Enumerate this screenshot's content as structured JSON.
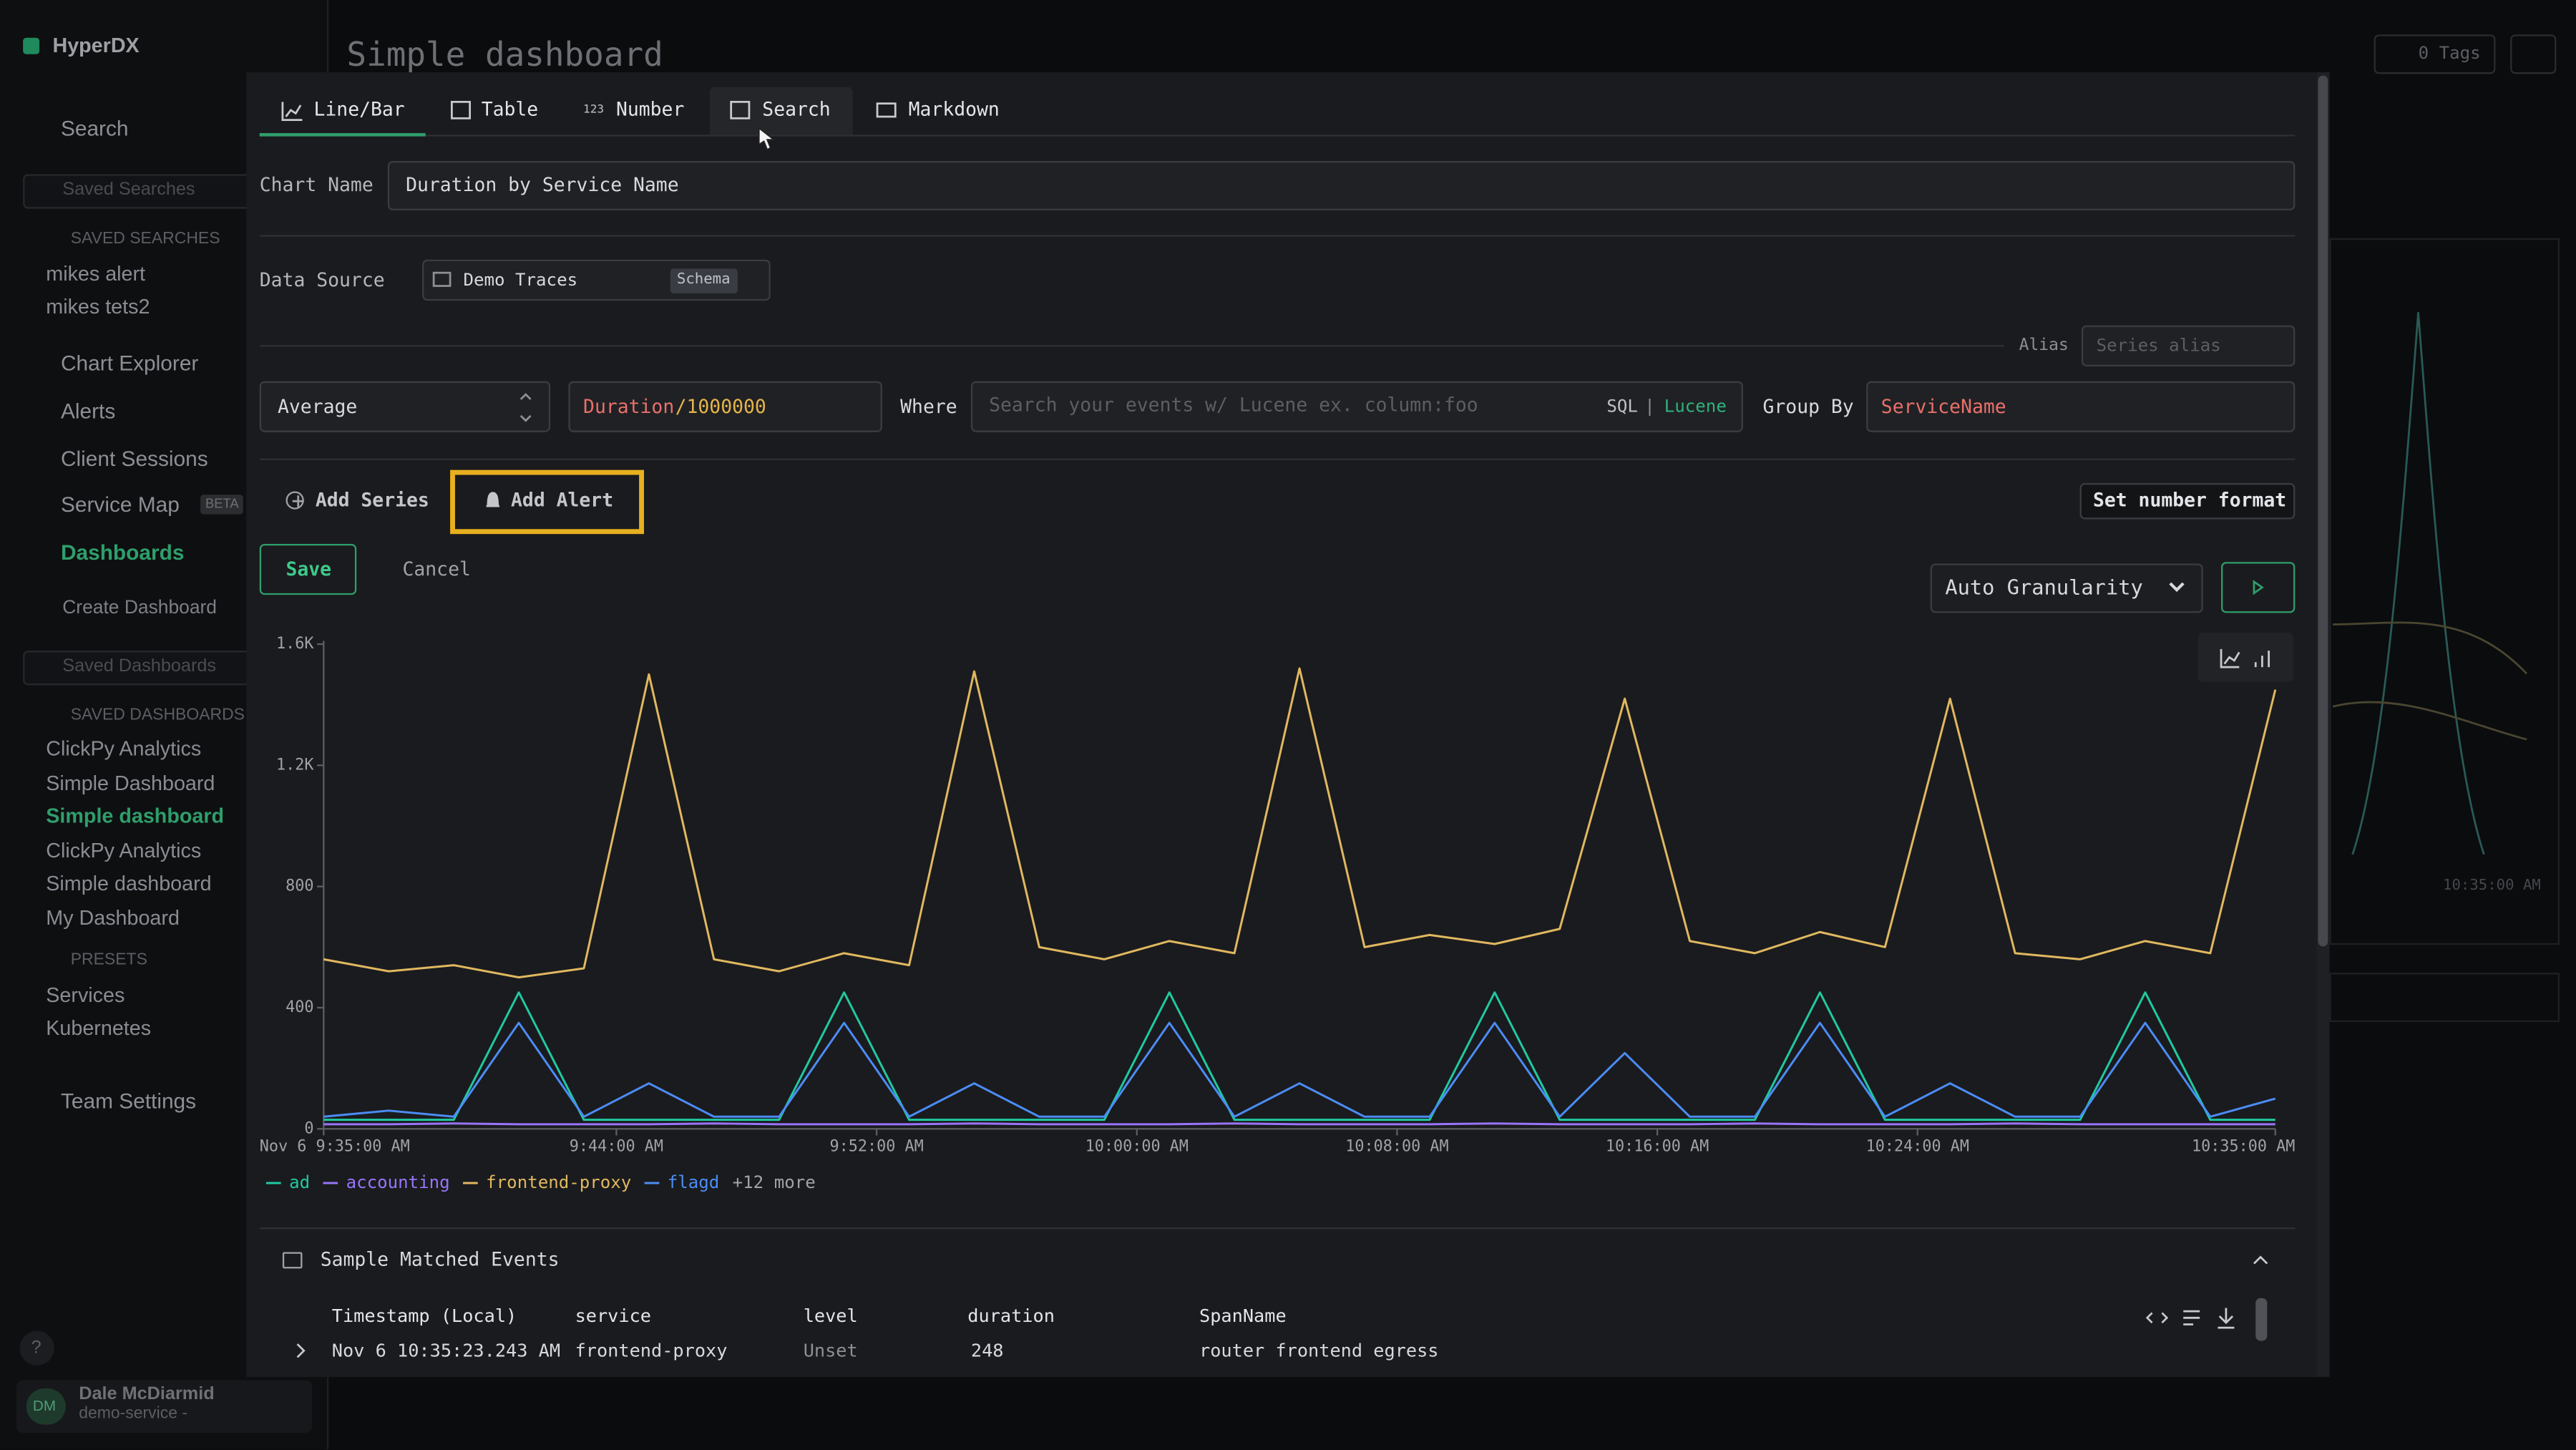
{
  "sidebar": {
    "brand": "HyperDX",
    "nav_search": "Search",
    "saved_searches_placeholder": "Saved Searches",
    "saved_searches_heading": "SAVED SEARCHES",
    "saved_searches": [
      "mikes alert",
      "mikes tets2"
    ],
    "nav": [
      "Chart Explorer",
      "Alerts",
      "Client Sessions",
      "Service Map"
    ],
    "beta": "BETA",
    "dashboards": "Dashboards",
    "create_dashboard": "Create Dashboard",
    "saved_dashboards_placeholder": "Saved Dashboards",
    "saved_dashboards_heading": "SAVED DASHBOARDS",
    "saved_dashboards": [
      "ClickPy Analytics",
      "Simple Dashboard",
      "Simple dashboard",
      "ClickPy Analytics",
      "Simple dashboard",
      "My Dashboard"
    ],
    "presets_heading": "PRESETS",
    "presets": [
      "Services",
      "Kubernetes"
    ],
    "team_settings": "Team Settings",
    "help": "?",
    "user": {
      "initials": "DM",
      "name": "Dale McDiarmid",
      "team": "demo-service -"
    }
  },
  "header": {
    "title": "Simple dashboard",
    "tags": "0 Tags"
  },
  "background_panel": {
    "x_label": "10:35:00 AM"
  },
  "editor": {
    "tabs": [
      "Line/Bar",
      "Table",
      "Number",
      "Search",
      "Markdown"
    ],
    "number_icon": "123",
    "chart_name_label": "Chart Name",
    "chart_name": "Duration by Service Name",
    "data_source_label": "Data Source",
    "data_source": "Demo Traces",
    "schema": "Schema",
    "alias_label": "Alias",
    "alias_placeholder": "Series alias",
    "aggregation": "Average",
    "expression_field": "Duration",
    "expression_divisor": "/1000000",
    "where_label": "Where",
    "where_placeholder": "Search your events w/ Lucene ex. column:foo",
    "sql": "SQL",
    "separator": "|",
    "lucene": "Lucene",
    "group_by_label": "Group By",
    "group_by": "ServiceName",
    "add_series": "Add Series",
    "add_alert": "Add Alert",
    "set_number_format": "Set number format",
    "save": "Save",
    "cancel": "Cancel",
    "granularity": "Auto Granularity",
    "legend_more": "+12 more"
  },
  "chart_data": {
    "type": "line",
    "x": [
      "9:35",
      "9:37",
      "9:39",
      "9:41",
      "9:43",
      "9:45",
      "9:47",
      "9:49",
      "9:51",
      "9:53",
      "9:55",
      "9:57",
      "9:59",
      "10:01",
      "10:03",
      "10:05",
      "10:07",
      "10:09",
      "10:11",
      "10:13",
      "10:15",
      "10:17",
      "10:19",
      "10:21",
      "10:23",
      "10:25",
      "10:27",
      "10:29",
      "10:31",
      "10:33",
      "10:35"
    ],
    "xlim": [
      "9:35",
      "10:35"
    ],
    "xticks": [
      {
        "value": "9:35",
        "label": "Nov 6 9:35:00 AM"
      },
      {
        "value": "9:44",
        "label": "9:44:00 AM"
      },
      {
        "value": "9:52",
        "label": "9:52:00 AM"
      },
      {
        "value": "10:00",
        "label": "10:00:00 AM"
      },
      {
        "value": "10:08",
        "label": "10:08:00 AM"
      },
      {
        "value": "10:16",
        "label": "10:16:00 AM"
      },
      {
        "value": "10:24",
        "label": "10:24:00 AM"
      },
      {
        "value": "10:35",
        "label": "10:35:00 AM"
      }
    ],
    "ylim": [
      0,
      1600
    ],
    "yticks": [
      0,
      400,
      800,
      {
        "value": 1200,
        "label": "1.2K"
      },
      {
        "value": 1600,
        "label": "1.6K"
      }
    ],
    "series": [
      {
        "name": "ad",
        "color": "#20c9a0",
        "values": [
          30,
          30,
          30,
          450,
          30,
          30,
          30,
          30,
          450,
          30,
          30,
          30,
          30,
          450,
          30,
          30,
          30,
          30,
          450,
          30,
          30,
          30,
          30,
          450,
          30,
          30,
          30,
          30,
          450,
          30,
          30
        ]
      },
      {
        "name": "accounting",
        "color": "#9775fa",
        "values": [
          15,
          15,
          18,
          15,
          15,
          15,
          18,
          15,
          15,
          15,
          18,
          15,
          15,
          15,
          18,
          15,
          15,
          15,
          18,
          15,
          15,
          15,
          18,
          15,
          15,
          15,
          18,
          15,
          15,
          15,
          15
        ]
      },
      {
        "name": "frontend-proxy",
        "color": "#e0b860",
        "values": [
          560,
          520,
          540,
          500,
          530,
          1500,
          560,
          520,
          580,
          540,
          1510,
          600,
          560,
          620,
          580,
          1520,
          600,
          640,
          610,
          660,
          1420,
          620,
          580,
          650,
          600,
          1420,
          580,
          560,
          620,
          580,
          1450
        ]
      },
      {
        "name": "flagd",
        "color": "#4c8cf5",
        "values": [
          40,
          60,
          40,
          350,
          40,
          150,
          40,
          40,
          350,
          40,
          150,
          40,
          40,
          350,
          40,
          150,
          40,
          40,
          350,
          40,
          250,
          40,
          40,
          350,
          40,
          150,
          40,
          40,
          350,
          40,
          100
        ]
      }
    ],
    "grid": false
  },
  "events": {
    "title": "Sample Matched Events",
    "columns": [
      "Timestamp (Local)",
      "service",
      "level",
      "duration",
      "SpanName"
    ],
    "rows": [
      [
        "Nov 6 10:35:23.243 AM",
        "frontend-proxy",
        "Unset",
        "248",
        "router frontend egress"
      ]
    ]
  }
}
